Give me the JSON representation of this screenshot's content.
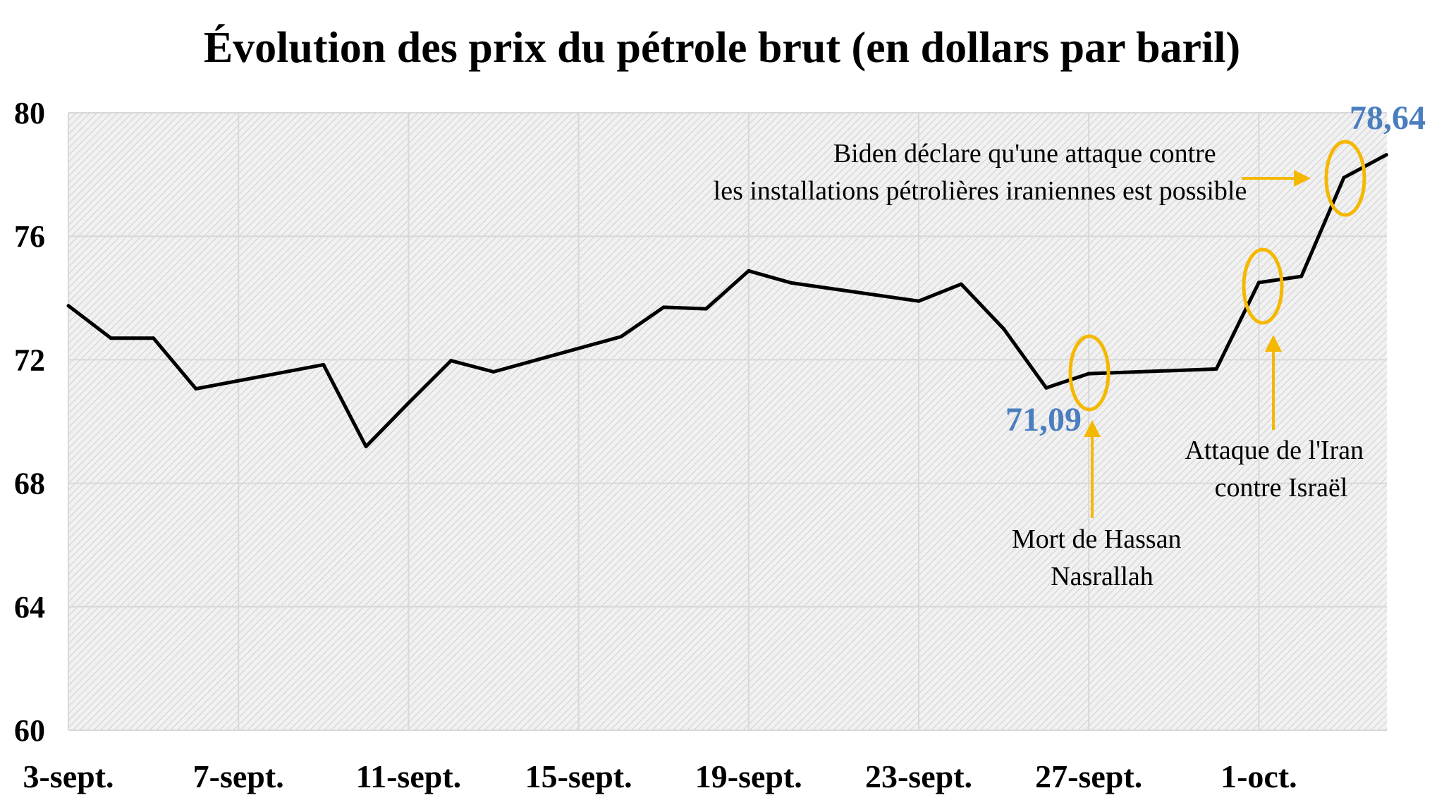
{
  "chart_data": {
    "type": "line",
    "title": "Évolution des prix du pétrole brut (en dollars par baril)",
    "xlabel": "",
    "ylabel": "",
    "ylim": [
      60,
      80
    ],
    "yticks": [
      "60",
      "64",
      "68",
      "72",
      "76",
      "80"
    ],
    "xticks": [
      "3-sept.",
      "7-sept.",
      "11-sept.",
      "15-sept.",
      "19-sept.",
      "23-sept.",
      "27-sept.",
      "1-oct."
    ],
    "x": [
      "3-sept.",
      "4-sept.",
      "5-sept.",
      "6-sept.",
      "9-sept.",
      "10-sept.",
      "11-sept.",
      "12-sept.",
      "13-sept.",
      "16-sept.",
      "17-sept.",
      "18-sept.",
      "19-sept.",
      "20-sept.",
      "23-sept.",
      "24-sept.",
      "25-sept.",
      "26-sept.",
      "27-sept.",
      "30-sept.",
      "1-oct.",
      "2-oct.",
      "3-oct.",
      "4-oct."
    ],
    "series": [
      {
        "values": [
          73.75,
          72.7,
          72.7,
          71.06,
          71.84,
          69.19,
          70.6,
          71.97,
          71.61,
          72.75,
          73.7,
          73.65,
          74.88,
          74.49,
          73.9,
          74.45,
          73.0,
          71.09,
          71.55,
          71.7,
          74.5,
          74.7,
          77.9,
          78.64
        ],
        "color": "#000000"
      }
    ],
    "data_labels": [
      {
        "text": "71,09",
        "color": "#4a7ebf"
      },
      {
        "text": "78,64",
        "color": "#4a7ebf"
      }
    ],
    "annotations": [
      {
        "lines": [
          "Mort de Hassan",
          "Nasrallah"
        ]
      },
      {
        "lines": [
          "Attaque de l'Iran",
          "contre Israël"
        ]
      },
      {
        "lines": [
          "Biden déclare qu'une attaque contre",
          "les installations pétrolières iraniennes est possible"
        ]
      }
    ],
    "annotation_color": "#f5b800",
    "grid": true,
    "plot_background": "hatched-gray"
  }
}
